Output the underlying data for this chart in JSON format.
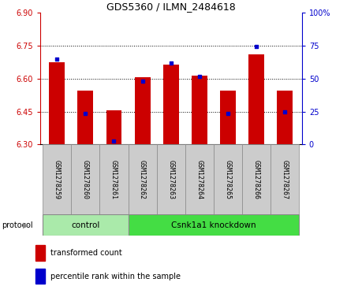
{
  "title": "GDS5360 / ILMN_2484618",
  "samples": [
    "GSM1278259",
    "GSM1278260",
    "GSM1278261",
    "GSM1278262",
    "GSM1278263",
    "GSM1278264",
    "GSM1278265",
    "GSM1278266",
    "GSM1278267"
  ],
  "bar_values": [
    6.675,
    6.545,
    6.455,
    6.605,
    6.665,
    6.615,
    6.545,
    6.71,
    6.545
  ],
  "percentile_values": [
    6.69,
    6.44,
    6.315,
    6.59,
    6.67,
    6.61,
    6.44,
    6.745,
    6.45
  ],
  "bar_base": 6.3,
  "ylim_left": [
    6.3,
    6.9
  ],
  "ylim_right": [
    0,
    100
  ],
  "yticks_left": [
    6.3,
    6.45,
    6.6,
    6.75,
    6.9
  ],
  "yticks_right": [
    0,
    25,
    50,
    75,
    100
  ],
  "bar_color": "#cc0000",
  "dot_color": "#0000cc",
  "bg_color": "#ffffff",
  "control_samples": 3,
  "control_label": "control",
  "treatment_label": "Csnk1a1 knockdown",
  "protocol_label": "protocol",
  "control_color": "#aaeaaa",
  "treatment_color": "#44dd44",
  "sample_bg_color": "#cccccc",
  "legend_bar_label": "transformed count",
  "legend_dot_label": "percentile rank within the sample",
  "bar_width": 0.55
}
